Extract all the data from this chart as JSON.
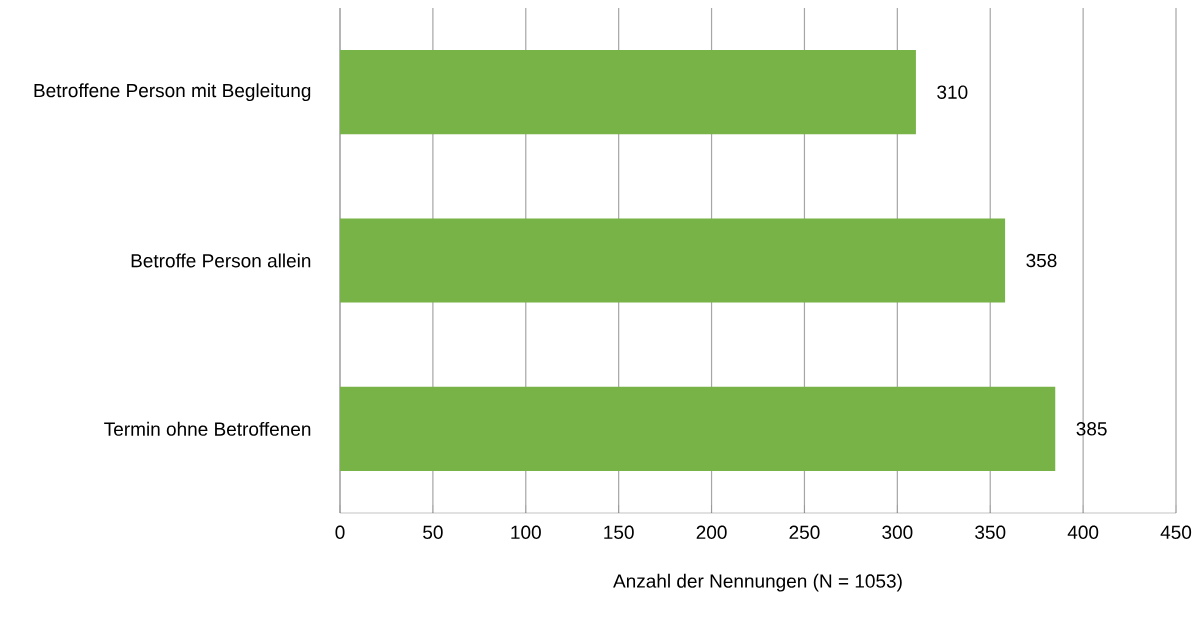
{
  "chart_data": {
    "type": "bar",
    "orientation": "horizontal",
    "xlabel": "Anzahl der Nennungen (N = 1053)",
    "categories": [
      "Betroffene Person mit Begleitung",
      "Betroffe Person allein",
      "Termin ohne Betroffenen"
    ],
    "values": [
      310,
      358,
      385
    ],
    "color": "#77b347",
    "data_labels": true,
    "xlim": [
      0,
      450
    ],
    "xticks": [
      0,
      50,
      100,
      150,
      200,
      250,
      300,
      350,
      400,
      450
    ],
    "grid": "x"
  }
}
